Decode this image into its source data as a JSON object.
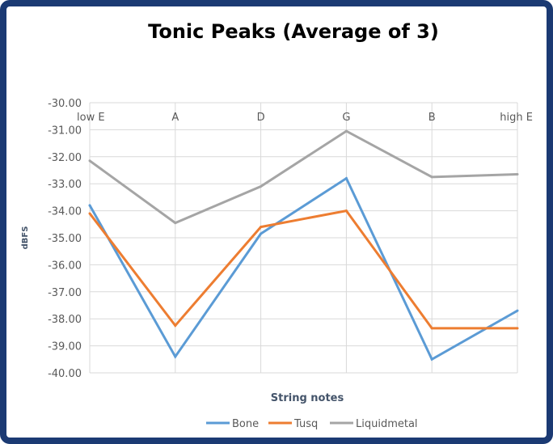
{
  "chart_data": {
    "type": "line",
    "title": "Tonic Peaks (Average of 3)",
    "xlabel": "String notes",
    "ylabel": "dBFS",
    "categories": [
      "low E",
      "A",
      "D",
      "G",
      "B",
      "high E"
    ],
    "ylim": [
      -40,
      -30
    ],
    "yticks": [
      "-30.00",
      "-31.00",
      "-32.00",
      "-33.00",
      "-34.00",
      "-35.00",
      "-36.00",
      "-37.00",
      "-38.00",
      "-39.00",
      "-40.00"
    ],
    "grid": true,
    "legend_position": "bottom",
    "series": [
      {
        "name": "Bone",
        "color": "#5b9bd5",
        "values": [
          -33.8,
          -39.4,
          -34.85,
          -32.8,
          -39.5,
          -37.7
        ]
      },
      {
        "name": "Tusq",
        "color": "#ed7d31",
        "values": [
          -34.1,
          -38.25,
          -34.6,
          -34.0,
          -38.35,
          -38.35
        ]
      },
      {
        "name": "Liquidmetal",
        "color": "#a5a5a5",
        "values": [
          -32.15,
          -34.45,
          -33.1,
          -31.05,
          -32.75,
          -32.65
        ]
      }
    ]
  }
}
